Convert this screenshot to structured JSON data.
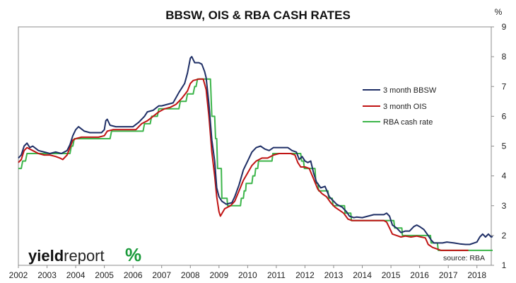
{
  "header": {
    "title": "BBSW, OIS & RBA CASH RATES",
    "unit": "%"
  },
  "logo": {
    "brand": "yieldreport",
    "part1": "yield",
    "part2": "report",
    "glyph": "%",
    "glyph_color": "#1a9a3a"
  },
  "source_note": "source: RBA",
  "chart_data": {
    "type": "line",
    "title": "BBSW, OIS & RBA CASH RATES",
    "xlabel": "",
    "ylabel": "%",
    "xlim": [
      2002.0,
      2018.5
    ],
    "ylim": [
      1,
      9
    ],
    "x_ticks": [
      2002,
      2003,
      2004,
      2005,
      2006,
      2007,
      2008,
      2009,
      2010,
      2011,
      2012,
      2013,
      2014,
      2015,
      2016,
      2017,
      2018
    ],
    "y_ticks": [
      1,
      2,
      3,
      4,
      5,
      6,
      7,
      8,
      9
    ],
    "y_axis_side": "right",
    "grid": false,
    "legend_position": "right",
    "series": [
      {
        "name": "3 month BBSW",
        "color": "#1f2f66",
        "points": [
          [
            2002.0,
            4.6
          ],
          [
            2002.1,
            4.7
          ],
          [
            2002.2,
            5.0
          ],
          [
            2002.3,
            5.1
          ],
          [
            2002.4,
            4.95
          ],
          [
            2002.5,
            5.0
          ],
          [
            2002.7,
            4.85
          ],
          [
            2002.9,
            4.8
          ],
          [
            2003.1,
            4.75
          ],
          [
            2003.3,
            4.8
          ],
          [
            2003.5,
            4.75
          ],
          [
            2003.7,
            4.85
          ],
          [
            2003.8,
            5.05
          ],
          [
            2003.9,
            5.35
          ],
          [
            2004.0,
            5.55
          ],
          [
            2004.1,
            5.65
          ],
          [
            2004.3,
            5.5
          ],
          [
            2004.5,
            5.45
          ],
          [
            2004.7,
            5.45
          ],
          [
            2004.9,
            5.45
          ],
          [
            2005.0,
            5.55
          ],
          [
            2005.05,
            5.85
          ],
          [
            2005.1,
            5.9
          ],
          [
            2005.2,
            5.7
          ],
          [
            2005.4,
            5.65
          ],
          [
            2005.6,
            5.65
          ],
          [
            2005.8,
            5.65
          ],
          [
            2006.0,
            5.65
          ],
          [
            2006.2,
            5.8
          ],
          [
            2006.4,
            6.0
          ],
          [
            2006.5,
            6.15
          ],
          [
            2006.7,
            6.2
          ],
          [
            2006.9,
            6.35
          ],
          [
            2007.0,
            6.35
          ],
          [
            2007.2,
            6.4
          ],
          [
            2007.4,
            6.45
          ],
          [
            2007.6,
            6.8
          ],
          [
            2007.8,
            7.1
          ],
          [
            2007.9,
            7.45
          ],
          [
            2008.0,
            7.95
          ],
          [
            2008.05,
            8.0
          ],
          [
            2008.15,
            7.8
          ],
          [
            2008.3,
            7.8
          ],
          [
            2008.4,
            7.75
          ],
          [
            2008.5,
            7.5
          ],
          [
            2008.55,
            7.3
          ],
          [
            2008.65,
            6.4
          ],
          [
            2008.75,
            5.2
          ],
          [
            2008.85,
            4.5
          ],
          [
            2008.92,
            3.6
          ],
          [
            2009.0,
            3.3
          ],
          [
            2009.1,
            3.15
          ],
          [
            2009.25,
            3.05
          ],
          [
            2009.45,
            3.1
          ],
          [
            2009.55,
            3.3
          ],
          [
            2009.7,
            3.7
          ],
          [
            2009.85,
            4.2
          ],
          [
            2010.0,
            4.5
          ],
          [
            2010.15,
            4.8
          ],
          [
            2010.3,
            4.95
          ],
          [
            2010.45,
            5.0
          ],
          [
            2010.6,
            4.9
          ],
          [
            2010.75,
            4.85
          ],
          [
            2010.9,
            4.95
          ],
          [
            2011.0,
            4.95
          ],
          [
            2011.2,
            4.95
          ],
          [
            2011.4,
            4.95
          ],
          [
            2011.55,
            4.85
          ],
          [
            2011.7,
            4.8
          ],
          [
            2011.8,
            4.55
          ],
          [
            2011.9,
            4.65
          ],
          [
            2012.0,
            4.5
          ],
          [
            2012.1,
            4.45
          ],
          [
            2012.2,
            4.5
          ],
          [
            2012.3,
            4.1
          ],
          [
            2012.4,
            3.8
          ],
          [
            2012.55,
            3.6
          ],
          [
            2012.7,
            3.65
          ],
          [
            2012.85,
            3.3
          ],
          [
            2012.95,
            3.2
          ],
          [
            2013.1,
            3.05
          ],
          [
            2013.2,
            3.0
          ],
          [
            2013.3,
            2.95
          ],
          [
            2013.45,
            2.8
          ],
          [
            2013.55,
            2.65
          ],
          [
            2013.7,
            2.6
          ],
          [
            2013.8,
            2.62
          ],
          [
            2014.0,
            2.6
          ],
          [
            2014.2,
            2.65
          ],
          [
            2014.4,
            2.7
          ],
          [
            2014.6,
            2.7
          ],
          [
            2014.75,
            2.7
          ],
          [
            2014.85,
            2.75
          ],
          [
            2014.95,
            2.65
          ],
          [
            2015.05,
            2.35
          ],
          [
            2015.2,
            2.25
          ],
          [
            2015.35,
            2.1
          ],
          [
            2015.5,
            2.15
          ],
          [
            2015.65,
            2.15
          ],
          [
            2015.8,
            2.3
          ],
          [
            2015.9,
            2.35
          ],
          [
            2016.0,
            2.3
          ],
          [
            2016.15,
            2.2
          ],
          [
            2016.3,
            2.0
          ],
          [
            2016.4,
            1.85
          ],
          [
            2016.5,
            1.75
          ],
          [
            2016.65,
            1.75
          ],
          [
            2016.8,
            1.75
          ],
          [
            2016.95,
            1.78
          ],
          [
            2017.2,
            1.75
          ],
          [
            2017.4,
            1.72
          ],
          [
            2017.6,
            1.7
          ],
          [
            2017.75,
            1.7
          ],
          [
            2017.9,
            1.75
          ],
          [
            2018.0,
            1.78
          ],
          [
            2018.1,
            1.95
          ],
          [
            2018.2,
            2.05
          ],
          [
            2018.3,
            1.95
          ],
          [
            2018.4,
            2.05
          ],
          [
            2018.5,
            1.95
          ],
          [
            2018.55,
            1.97
          ]
        ]
      },
      {
        "name": "3 month OIS",
        "color": "#c01414",
        "points": [
          [
            2002.0,
            4.45
          ],
          [
            2002.1,
            4.55
          ],
          [
            2002.2,
            4.85
          ],
          [
            2002.3,
            4.95
          ],
          [
            2002.5,
            4.85
          ],
          [
            2002.7,
            4.75
          ],
          [
            2002.9,
            4.7
          ],
          [
            2003.1,
            4.7
          ],
          [
            2003.3,
            4.65
          ],
          [
            2003.45,
            4.6
          ],
          [
            2003.55,
            4.55
          ],
          [
            2003.7,
            4.7
          ],
          [
            2003.8,
            4.95
          ],
          [
            2003.9,
            5.2
          ],
          [
            2004.0,
            5.25
          ],
          [
            2004.2,
            5.3
          ],
          [
            2004.4,
            5.3
          ],
          [
            2004.6,
            5.3
          ],
          [
            2004.8,
            5.3
          ],
          [
            2005.0,
            5.35
          ],
          [
            2005.1,
            5.5
          ],
          [
            2005.3,
            5.55
          ],
          [
            2005.5,
            5.55
          ],
          [
            2005.7,
            5.55
          ],
          [
            2005.9,
            5.55
          ],
          [
            2006.1,
            5.55
          ],
          [
            2006.3,
            5.75
          ],
          [
            2006.5,
            5.85
          ],
          [
            2006.7,
            6.0
          ],
          [
            2006.9,
            6.15
          ],
          [
            2007.1,
            6.25
          ],
          [
            2007.3,
            6.3
          ],
          [
            2007.5,
            6.4
          ],
          [
            2007.7,
            6.6
          ],
          [
            2007.9,
            6.85
          ],
          [
            2008.0,
            7.1
          ],
          [
            2008.1,
            7.2
          ],
          [
            2008.3,
            7.25
          ],
          [
            2008.45,
            7.25
          ],
          [
            2008.55,
            6.9
          ],
          [
            2008.65,
            6.0
          ],
          [
            2008.75,
            4.8
          ],
          [
            2008.85,
            4.0
          ],
          [
            2008.92,
            3.3
          ],
          [
            2009.0,
            2.8
          ],
          [
            2009.05,
            2.65
          ],
          [
            2009.2,
            2.9
          ],
          [
            2009.4,
            3.0
          ],
          [
            2009.55,
            3.15
          ],
          [
            2009.7,
            3.5
          ],
          [
            2009.85,
            3.85
          ],
          [
            2010.0,
            4.1
          ],
          [
            2010.15,
            4.35
          ],
          [
            2010.3,
            4.5
          ],
          [
            2010.5,
            4.6
          ],
          [
            2010.7,
            4.6
          ],
          [
            2010.9,
            4.7
          ],
          [
            2011.1,
            4.75
          ],
          [
            2011.3,
            4.75
          ],
          [
            2011.5,
            4.75
          ],
          [
            2011.65,
            4.7
          ],
          [
            2011.75,
            4.45
          ],
          [
            2011.85,
            4.3
          ],
          [
            2012.0,
            4.3
          ],
          [
            2012.15,
            4.25
          ],
          [
            2012.3,
            3.9
          ],
          [
            2012.45,
            3.55
          ],
          [
            2012.6,
            3.4
          ],
          [
            2012.75,
            3.3
          ],
          [
            2012.9,
            3.1
          ],
          [
            2013.05,
            2.95
          ],
          [
            2013.2,
            2.85
          ],
          [
            2013.35,
            2.75
          ],
          [
            2013.5,
            2.55
          ],
          [
            2013.65,
            2.5
          ],
          [
            2013.8,
            2.5
          ],
          [
            2014.0,
            2.5
          ],
          [
            2014.2,
            2.5
          ],
          [
            2014.4,
            2.5
          ],
          [
            2014.6,
            2.5
          ],
          [
            2014.75,
            2.5
          ],
          [
            2014.85,
            2.45
          ],
          [
            2014.95,
            2.25
          ],
          [
            2015.05,
            2.05
          ],
          [
            2015.2,
            2.0
          ],
          [
            2015.35,
            1.95
          ],
          [
            2015.5,
            1.98
          ],
          [
            2015.7,
            1.95
          ],
          [
            2015.9,
            1.98
          ],
          [
            2016.05,
            1.95
          ],
          [
            2016.2,
            1.92
          ],
          [
            2016.3,
            1.7
          ],
          [
            2016.45,
            1.6
          ],
          [
            2016.6,
            1.55
          ],
          [
            2016.75,
            1.5
          ],
          [
            2016.9,
            1.5
          ],
          [
            2017.1,
            1.5
          ],
          [
            2017.3,
            1.5
          ],
          [
            2017.5,
            1.5
          ],
          [
            2017.7,
            1.5
          ]
        ]
      },
      {
        "name": "RBA cash rate",
        "color": "#3cb54a",
        "points": [
          [
            2002.0,
            4.25
          ],
          [
            2002.1,
            4.25
          ],
          [
            2002.15,
            4.5
          ],
          [
            2002.25,
            4.5
          ],
          [
            2002.3,
            4.75
          ],
          [
            2003.8,
            4.75
          ],
          [
            2003.85,
            5.0
          ],
          [
            2003.9,
            5.0
          ],
          [
            2003.95,
            5.25
          ],
          [
            2005.2,
            5.25
          ],
          [
            2005.25,
            5.5
          ],
          [
            2006.35,
            5.5
          ],
          [
            2006.4,
            5.75
          ],
          [
            2006.6,
            5.75
          ],
          [
            2006.65,
            6.0
          ],
          [
            2006.85,
            6.0
          ],
          [
            2006.9,
            6.25
          ],
          [
            2007.6,
            6.25
          ],
          [
            2007.65,
            6.5
          ],
          [
            2007.85,
            6.5
          ],
          [
            2007.9,
            6.75
          ],
          [
            2008.1,
            6.75
          ],
          [
            2008.15,
            7.0
          ],
          [
            2008.2,
            7.0
          ],
          [
            2008.25,
            7.25
          ],
          [
            2008.7,
            7.25
          ],
          [
            2008.75,
            6.0
          ],
          [
            2008.85,
            6.0
          ],
          [
            2008.88,
            5.25
          ],
          [
            2008.92,
            5.25
          ],
          [
            2008.95,
            4.25
          ],
          [
            2009.08,
            4.25
          ],
          [
            2009.1,
            3.25
          ],
          [
            2009.28,
            3.25
          ],
          [
            2009.3,
            3.0
          ],
          [
            2009.75,
            3.0
          ],
          [
            2009.78,
            3.25
          ],
          [
            2009.85,
            3.25
          ],
          [
            2009.88,
            3.5
          ],
          [
            2009.93,
            3.5
          ],
          [
            2009.95,
            3.75
          ],
          [
            2010.15,
            3.75
          ],
          [
            2010.18,
            4.0
          ],
          [
            2010.25,
            4.0
          ],
          [
            2010.28,
            4.25
          ],
          [
            2010.35,
            4.25
          ],
          [
            2010.38,
            4.5
          ],
          [
            2010.85,
            4.5
          ],
          [
            2010.88,
            4.75
          ],
          [
            2011.85,
            4.75
          ],
          [
            2011.88,
            4.5
          ],
          [
            2011.95,
            4.5
          ],
          [
            2011.98,
            4.25
          ],
          [
            2012.35,
            4.25
          ],
          [
            2012.38,
            3.75
          ],
          [
            2012.45,
            3.75
          ],
          [
            2012.48,
            3.5
          ],
          [
            2012.8,
            3.5
          ],
          [
            2012.83,
            3.25
          ],
          [
            2012.95,
            3.25
          ],
          [
            2012.98,
            3.0
          ],
          [
            2013.38,
            3.0
          ],
          [
            2013.4,
            2.75
          ],
          [
            2013.6,
            2.75
          ],
          [
            2013.62,
            2.5
          ],
          [
            2015.1,
            2.5
          ],
          [
            2015.13,
            2.25
          ],
          [
            2015.38,
            2.25
          ],
          [
            2015.4,
            2.0
          ],
          [
            2016.38,
            2.0
          ],
          [
            2016.4,
            1.75
          ],
          [
            2016.62,
            1.75
          ],
          [
            2016.65,
            1.5
          ],
          [
            2018.55,
            1.5
          ]
        ]
      }
    ]
  }
}
